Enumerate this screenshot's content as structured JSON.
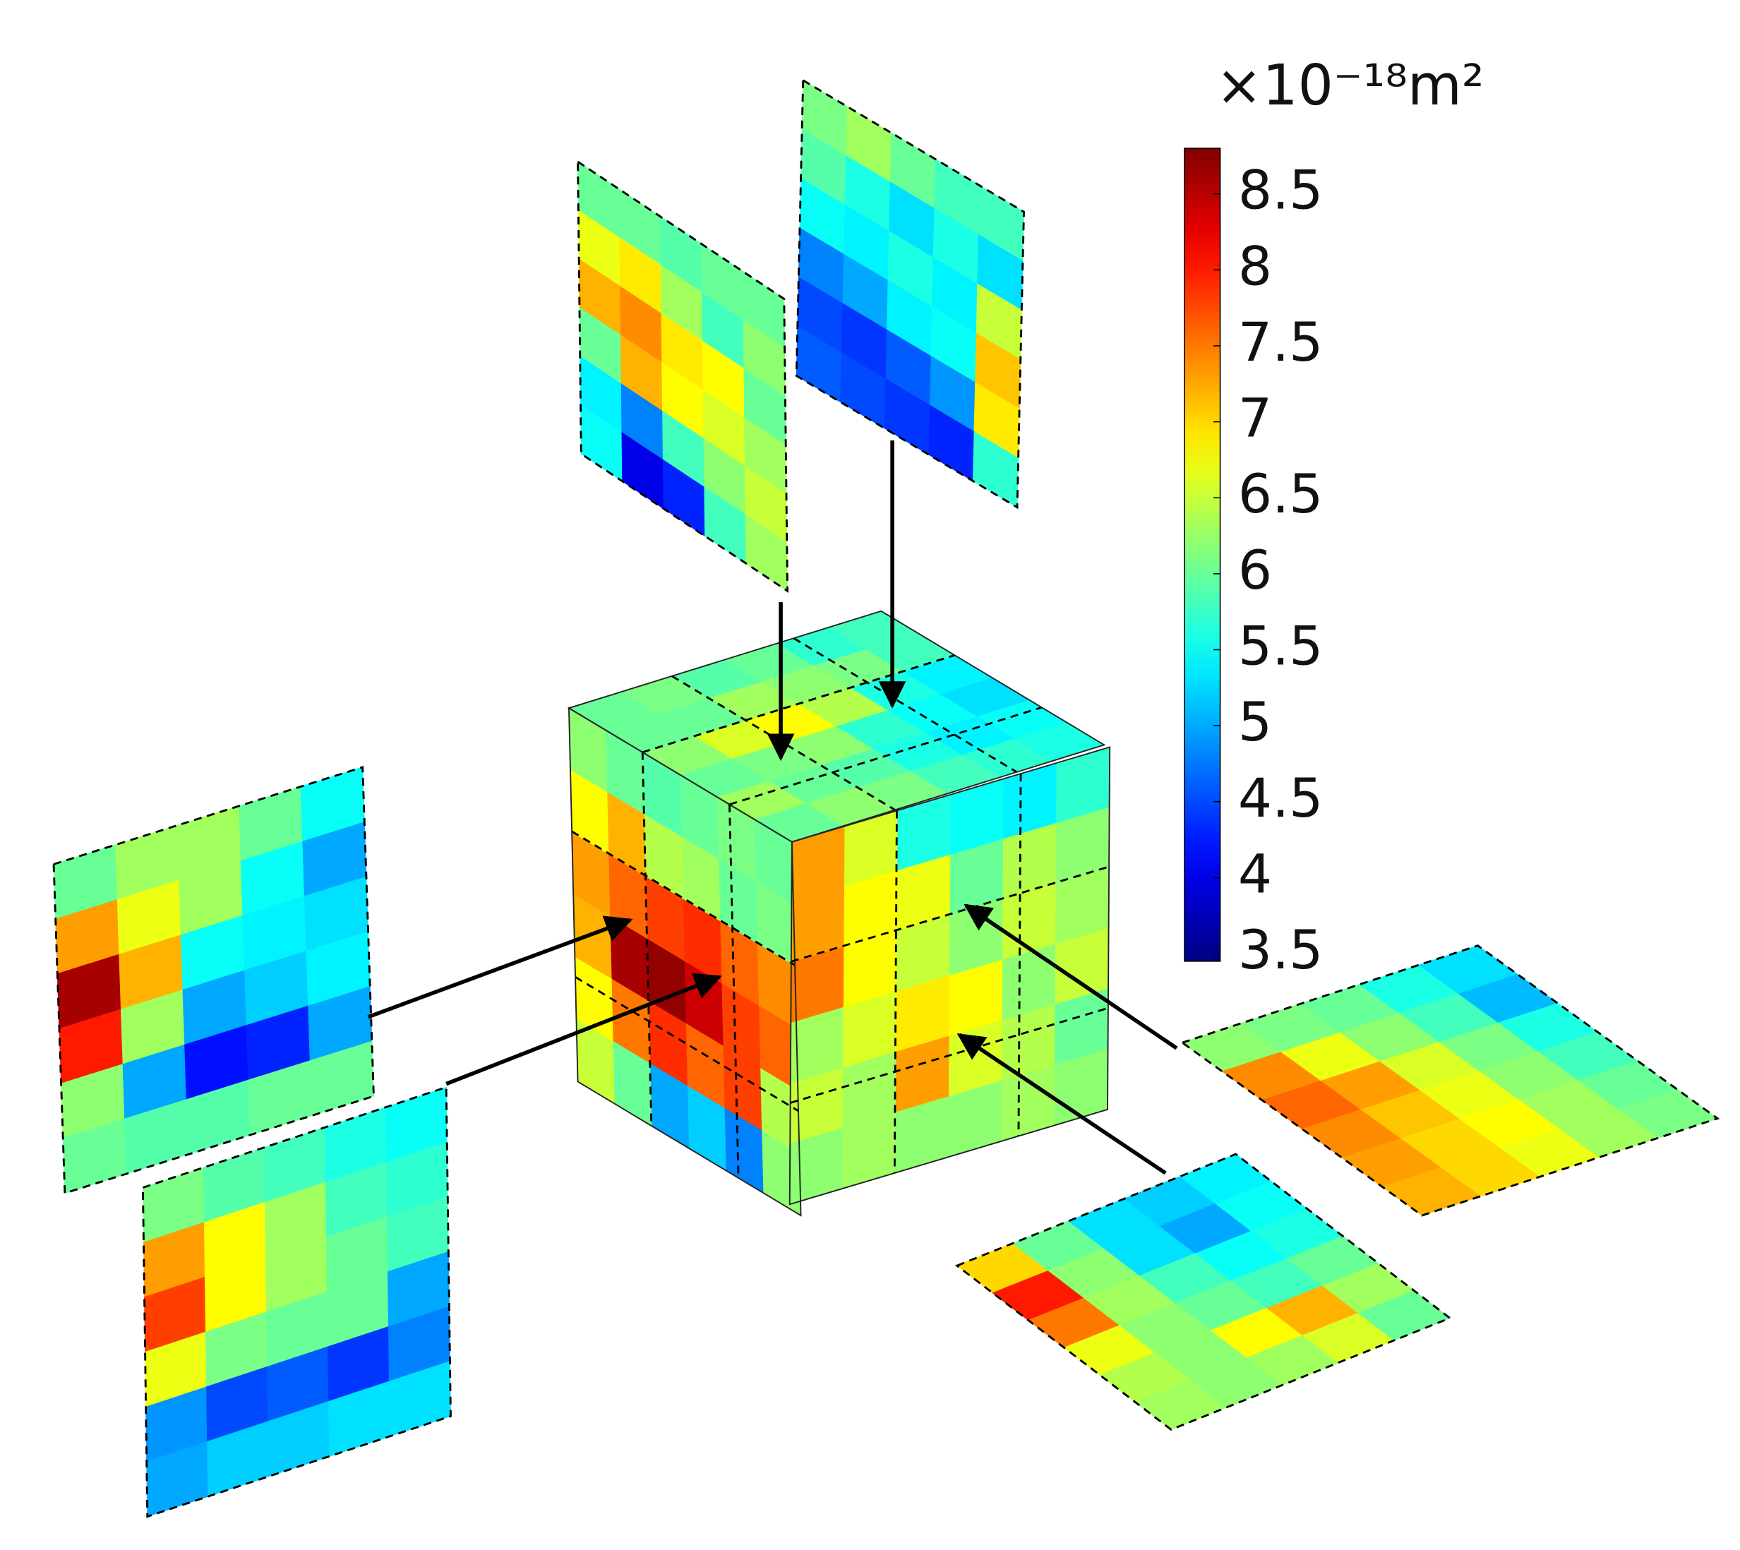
{
  "chart_data": {
    "type": "heatmap",
    "colorbar_label": "×10⁻¹⁸m²",
    "colormap": "jet",
    "clim": [
      3.45,
      8.8
    ],
    "cticks": [
      3.5,
      4,
      4.5,
      5,
      5.5,
      6,
      6.5,
      7,
      7.5,
      8,
      8.5
    ],
    "cube_faces": [
      {
        "values": [
          [
            6.2,
            6.0,
            5.9,
            6.0,
            6.1,
            6.0
          ],
          [
            6.8,
            7.2,
            6.4,
            6.3,
            6.0,
            6.1
          ],
          [
            7.3,
            7.6,
            7.8,
            7.9,
            7.6,
            7.4
          ],
          [
            7.2,
            8.6,
            8.7,
            8.4,
            7.8,
            7.6
          ],
          [
            6.8,
            7.5,
            7.9,
            7.6,
            7.8,
            6.4
          ],
          [
            6.5,
            6.0,
            5.0,
            5.2,
            4.8,
            6.2
          ]
        ]
      },
      {
        "values": [
          [
            7.3,
            6.6,
            5.6,
            5.5,
            5.4,
            5.7
          ],
          [
            7.3,
            6.8,
            6.7,
            6.0,
            6.4,
            6.2
          ],
          [
            7.5,
            6.8,
            6.5,
            6.2,
            6.5,
            6.3
          ],
          [
            6.3,
            6.6,
            6.9,
            6.8,
            6.2,
            6.5
          ],
          [
            6.5,
            6.3,
            7.3,
            6.6,
            6.4,
            6.0
          ],
          [
            6.2,
            6.3,
            6.2,
            6.2,
            6.3,
            6.2
          ]
        ]
      },
      {
        "values": [
          [
            6.0,
            6.1,
            5.9,
            6.0,
            5.7,
            5.8
          ],
          [
            6.0,
            6.0,
            6.3,
            6.2,
            6.1,
            5.8
          ],
          [
            6.2,
            6.6,
            6.8,
            6.4,
            5.6,
            5.4
          ],
          [
            6.0,
            6.1,
            6.2,
            5.7,
            5.5,
            5.3
          ],
          [
            6.3,
            6.0,
            5.9,
            5.6,
            5.4,
            5.5
          ],
          [
            6.0,
            6.2,
            6.1,
            5.8,
            5.7,
            5.6
          ]
        ]
      }
    ],
    "slices": [
      {
        "values": [
          [
            6.0,
            6.0,
            5.9,
            6.0,
            6.0
          ],
          [
            6.7,
            6.9,
            6.3,
            5.8,
            6.2
          ],
          [
            7.2,
            7.4,
            6.9,
            6.8,
            6.0
          ],
          [
            6.0,
            7.2,
            6.8,
            6.6,
            6.3
          ],
          [
            5.4,
            4.8,
            5.8,
            6.2,
            6.5
          ],
          [
            5.5,
            4.0,
            4.3,
            5.8,
            6.3
          ]
        ]
      },
      {
        "values": [
          [
            6.1,
            6.3,
            6.0,
            5.8,
            5.8
          ],
          [
            5.9,
            5.6,
            5.3,
            5.6,
            5.3
          ],
          [
            5.5,
            5.4,
            5.6,
            5.4,
            6.5
          ],
          [
            4.8,
            5.0,
            5.4,
            5.5,
            7.1
          ],
          [
            4.5,
            4.4,
            4.6,
            4.9,
            6.9
          ],
          [
            4.6,
            4.5,
            4.4,
            4.3,
            5.7
          ]
        ]
      },
      {
        "values": [
          [
            6.0,
            6.3,
            6.3,
            6.0,
            5.5
          ],
          [
            7.3,
            6.7,
            6.3,
            5.5,
            5.0
          ],
          [
            8.6,
            7.2,
            5.5,
            5.4,
            5.3
          ],
          [
            8.0,
            6.3,
            5.0,
            5.2,
            5.4
          ],
          [
            6.2,
            5.0,
            4.2,
            4.3,
            5.0
          ],
          [
            6.0,
            5.9,
            5.9,
            6.0,
            6.0
          ]
        ]
      },
      {
        "values": [
          [
            6.1,
            5.9,
            5.8,
            5.6,
            5.5
          ],
          [
            7.3,
            6.8,
            6.3,
            5.8,
            5.7
          ],
          [
            7.8,
            6.8,
            6.3,
            6.0,
            5.8
          ],
          [
            6.7,
            6.1,
            6.0,
            6.0,
            5.0
          ],
          [
            4.9,
            4.5,
            4.6,
            4.4,
            4.8
          ],
          [
            5.0,
            5.2,
            5.2,
            5.3,
            5.3
          ]
        ]
      },
      {
        "values": [
          [
            6.2,
            6.1,
            6.0,
            5.6,
            5.3
          ],
          [
            7.4,
            6.7,
            6.2,
            5.8,
            5.1
          ],
          [
            7.6,
            7.3,
            6.6,
            6.1,
            5.6
          ],
          [
            7.4,
            7.1,
            6.7,
            6.2,
            5.8
          ],
          [
            7.3,
            7.0,
            6.8,
            6.3,
            6.0
          ],
          [
            7.2,
            7.0,
            6.7,
            6.3,
            6.1
          ]
        ]
      },
      {
        "values": [
          [
            7.0,
            6.0,
            5.3,
            5.2,
            5.4
          ],
          [
            8.0,
            6.2,
            5.3,
            5.0,
            5.5
          ],
          [
            7.5,
            6.3,
            5.8,
            5.5,
            5.6
          ],
          [
            6.7,
            6.2,
            6.0,
            5.8,
            6.0
          ],
          [
            6.4,
            6.2,
            6.8,
            7.2,
            6.3
          ],
          [
            6.3,
            6.2,
            6.3,
            6.6,
            6.0
          ]
        ]
      }
    ]
  }
}
